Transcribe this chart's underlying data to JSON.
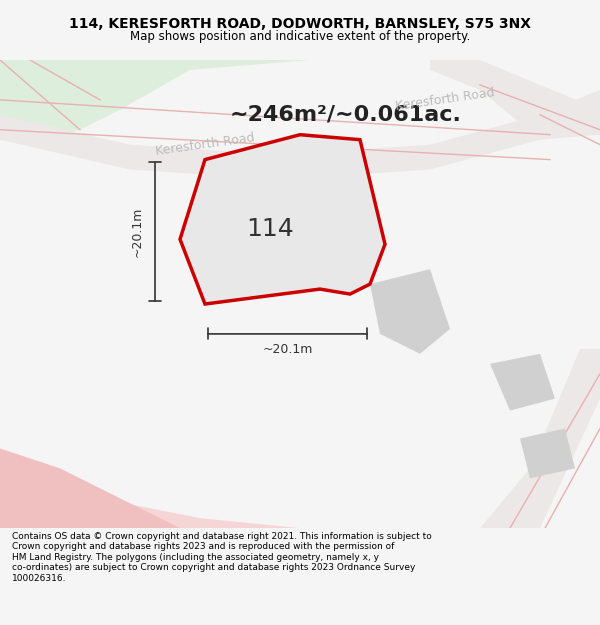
{
  "title_line1": "114, KERESFORTH ROAD, DODWORTH, BARNSLEY, S75 3NX",
  "title_line2": "Map shows position and indicative extent of the property.",
  "area_text": "~246m²/~0.061ac.",
  "road_label_1": "Keresforth Road",
  "road_label_2": "Keresforth Road",
  "number_label": "114",
  "dim_vertical": "~20.1m",
  "dim_horizontal": "~20.1m",
  "footer_wrapped": "Contains OS data © Crown copyright and database right 2021. This information is subject to\nCrown copyright and database rights 2023 and is reproduced with the permission of\nHM Land Registry. The polygons (including the associated geometry, namely x, y\nco-ordinates) are subject to Crown copyright and database rights 2023 Ordnance Survey\n100026316.",
  "bg_color": "#f5f5f5",
  "map_bg": "#ffffff",
  "plot_fill": "#e8e8e8",
  "plot_edge": "#cc0000",
  "green_color": "#ddeedd",
  "road_fill": "#ede8e8",
  "road_line": "#e8b0b0",
  "pink_blob": "#f0c0c0",
  "struct_color": "#d0d0d0",
  "dim_line_color": "#333333",
  "title_color": "#000000",
  "footer_color": "#000000",
  "road_label_color": "#bbbbbb",
  "number_color": "#333333"
}
